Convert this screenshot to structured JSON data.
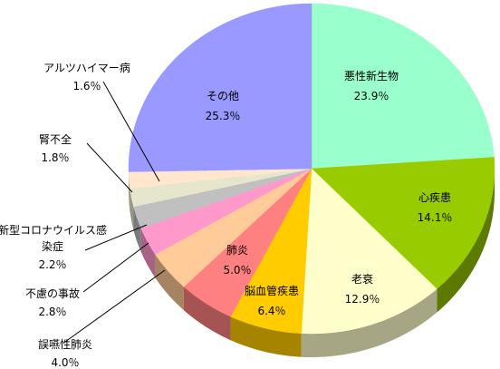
{
  "chart_data": {
    "type": "pie",
    "title": "",
    "slices": [
      {
        "name": "悪性新生物",
        "value_label": "23.9％",
        "value": 23.9,
        "color": "#99ffcc",
        "dark": "#5a9c7a"
      },
      {
        "name": "心疾患",
        "value_label": "14.1％",
        "value": 14.1,
        "color": "#99cc00",
        "dark": "#5c7a00"
      },
      {
        "name": "老衰",
        "value_label": "12.9％",
        "value": 12.9,
        "color": "#ffffcc",
        "dark": "#a6a685"
      },
      {
        "name": "脳血管疾患",
        "value_label": "6.4％",
        "value": 6.4,
        "color": "#ffcc00",
        "dark": "#a68400"
      },
      {
        "name": "肺炎",
        "value_label": "5.0％",
        "value": 5.0,
        "color": "#ff8080",
        "dark": "#a65353"
      },
      {
        "name": "誤嚥性肺炎",
        "value_label": "4.0％",
        "value": 4.0,
        "color": "#ffcc99",
        "dark": "#a68463"
      },
      {
        "name": "不慮の事故",
        "value_label": "2.8％",
        "value": 2.8,
        "color": "#ff99cc",
        "dark": "#a66384"
      },
      {
        "name": "新型コロナウイルス感染症",
        "value_label": "2.2％",
        "value": 2.2,
        "color": "#c0c0c0",
        "dark": "#7a7a7a"
      },
      {
        "name": "腎不全",
        "value_label": "1.8％",
        "value": 1.8,
        "color": "#e6e6cc",
        "dark": "#969685"
      },
      {
        "name": "アルツハイマー病",
        "value_label": "1.6％",
        "value": 1.6,
        "color": "#ffe6cc",
        "dark": "#a69685"
      },
      {
        "name": "その他",
        "value_label": "25.3％",
        "value": 25.3,
        "color": "#9999ff",
        "dark": "#6363a6"
      }
    ]
  }
}
